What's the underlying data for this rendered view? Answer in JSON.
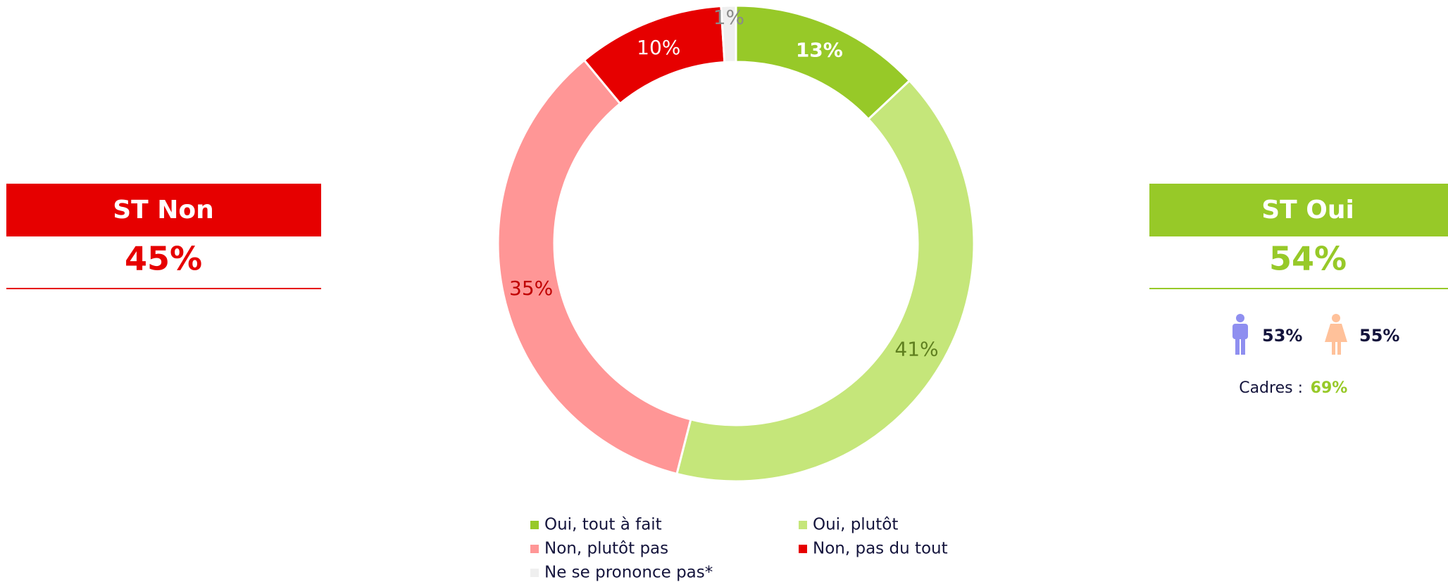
{
  "chart_data": {
    "type": "pie",
    "categories": [
      "Oui, tout à fait",
      "Oui, plutôt",
      "Non, plutôt pas",
      "Non, pas du tout",
      "Ne se prononce pas*"
    ],
    "values": [
      13,
      41,
      35,
      10,
      1
    ],
    "value_labels": [
      "13%",
      "41%",
      "35%",
      "10%",
      "1%"
    ],
    "colors": [
      "#97c928",
      "#c5e67a",
      "#ff9696",
      "#e60000",
      "#efefef"
    ],
    "label_colors": [
      "#ffffff",
      "#5f7f1f",
      "#c00000",
      "#ffffff",
      "#8a8a8a"
    ]
  },
  "summaries": [
    {
      "title": "ST Non",
      "value": "45%",
      "color": "#e60000"
    },
    {
      "title": "ST Oui",
      "value": "54%",
      "color": "#97c928",
      "men": "53%",
      "women": "55%",
      "cadres_label": "Cadres :",
      "cadres_value": "69%"
    }
  ]
}
